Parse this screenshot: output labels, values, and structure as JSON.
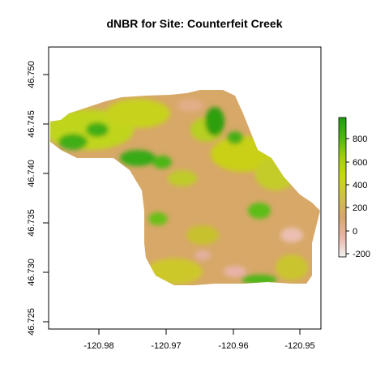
{
  "title": "dNBR for Site: Counterfeit Creek",
  "map": {
    "x_ticks": [
      "-120.98",
      "-120.97",
      "-120.96",
      "-120.95"
    ],
    "y_ticks": [
      "46.725",
      "46.730",
      "46.735",
      "46.740",
      "46.745",
      "46.750"
    ],
    "xlim": [
      -120.9875,
      -120.9475
    ],
    "ylim": [
      46.7242,
      46.7518
    ]
  },
  "legend": {
    "ticks": [
      "-200",
      "0",
      "200",
      "400",
      "600",
      "800"
    ],
    "range": [
      -250,
      960
    ],
    "colors": [
      "#f2f2f2",
      "#e9b6a8",
      "#d5a66f",
      "#cfc048",
      "#c8d915",
      "#a2cf10",
      "#4db60f",
      "#1e9e10"
    ]
  }
}
